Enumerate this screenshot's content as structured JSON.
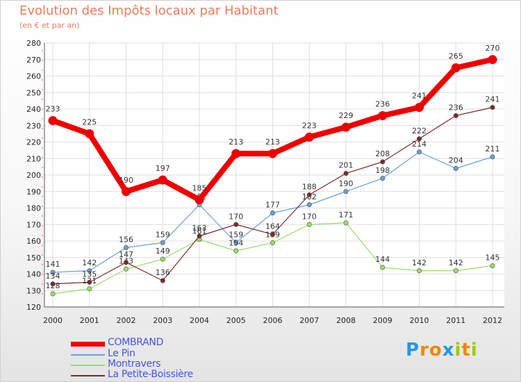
{
  "header": {
    "title": "Evolution des Impôts locaux par Habitant",
    "subtitle": "(en € et par an)"
  },
  "chart_data": {
    "type": "line",
    "title": "Evolution des Impôts locaux par Habitant",
    "subtitle": "(en € et par an)",
    "x": [
      "2000",
      "2001",
      "2002",
      "2003",
      "2004",
      "2005",
      "2006",
      "2007",
      "2008",
      "2009",
      "2010",
      "2011",
      "2012"
    ],
    "ylim": [
      120,
      280
    ],
    "yticks": [
      120,
      130,
      140,
      150,
      160,
      170,
      180,
      190,
      200,
      210,
      220,
      230,
      240,
      250,
      260,
      270,
      280
    ],
    "grid": true,
    "legend_position": "bottom-left",
    "series": [
      {
        "name": "COMBRAND",
        "color": "#ee0000",
        "values": [
          233,
          225,
          190,
          197,
          185,
          213,
          213,
          223,
          229,
          236,
          241,
          265,
          270
        ],
        "labels": [
          "233",
          "225",
          "190",
          "197",
          "185",
          "213",
          "213",
          "223",
          "229",
          "236",
          "241",
          "265",
          "270"
        ]
      },
      {
        "name": "Le Pin",
        "color": "#6a9fd4",
        "values": [
          141,
          142,
          156,
          159,
          182,
          159,
          177,
          182,
          190,
          198,
          214,
          204,
          211
        ],
        "labels": [
          "141",
          "142",
          "156",
          "159",
          "182",
          "159",
          "177",
          "182",
          "190",
          "198",
          "214",
          "204",
          "211"
        ]
      },
      {
        "name": "Montravers",
        "color": "#99dd66",
        "values": [
          128,
          131,
          143,
          149,
          161,
          154,
          159,
          170,
          171,
          144,
          142,
          142,
          145
        ],
        "labels": [
          "128",
          "131",
          "143",
          "149",
          "161",
          "154",
          "159",
          "170",
          "171",
          "144",
          "142",
          "142",
          "145"
        ]
      },
      {
        "name": "La Petite-Boissière",
        "color": "#7a2a2a",
        "values": [
          134,
          135,
          147,
          136,
          163,
          170,
          164,
          188,
          201,
          208,
          222,
          236,
          241
        ],
        "labels": [
          "134",
          "135",
          "147",
          "136",
          "163",
          "170",
          "164",
          "188",
          "201",
          "208",
          "222",
          "236",
          "241"
        ]
      }
    ]
  },
  "legend": {
    "label_color": "#4455dd",
    "items": [
      "COMBRAND",
      "Le Pin",
      "Montravers",
      "La Petite-Boissière"
    ]
  },
  "logo": {
    "letters": [
      "P",
      "r",
      "o",
      "x",
      "i",
      "t",
      "i"
    ],
    "colors": [
      "#2299dd",
      "#ee8800",
      "#ee8800",
      "#2299dd",
      "#99cc00",
      "#ee8800",
      "#99cc00"
    ]
  }
}
